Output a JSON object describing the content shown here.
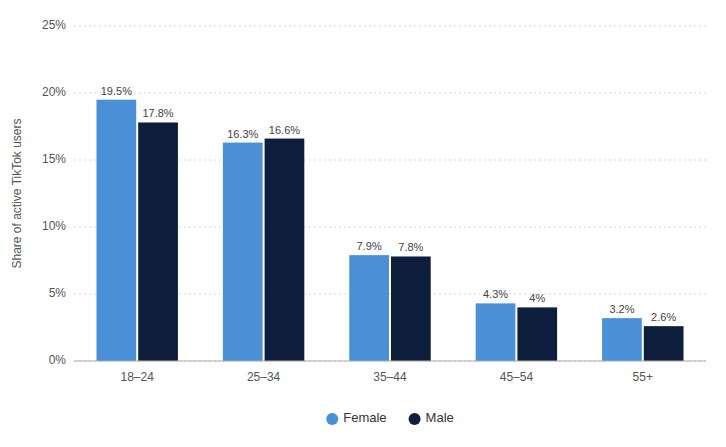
{
  "chart_data": {
    "type": "bar",
    "categories": [
      "18–24",
      "25–34",
      "35–44",
      "45–54",
      "55+"
    ],
    "series": [
      {
        "name": "Female",
        "color": "#4a90d9",
        "values": [
          19.5,
          16.3,
          7.9,
          4.3,
          3.2
        ],
        "value_labels": [
          "19.5%",
          "16.3%",
          "7.9%",
          "4.3%",
          "3.2%"
        ]
      },
      {
        "name": "Male",
        "color": "#0d1f3c",
        "values": [
          17.8,
          16.6,
          7.8,
          4.0,
          2.6
        ],
        "value_labels": [
          "17.8%",
          "16.6%",
          "7.8%",
          "4%",
          "2.6%"
        ]
      }
    ],
    "y_label": "Share of active TikTok users",
    "ylim": [
      0,
      25
    ],
    "yticks": [
      {
        "value": 0,
        "label": "0%"
      },
      {
        "value": 5,
        "label": "5%"
      },
      {
        "value": 10,
        "label": "10%"
      },
      {
        "value": 15,
        "label": "15%"
      },
      {
        "value": 20,
        "label": "20%"
      },
      {
        "value": 25,
        "label": "25%"
      }
    ],
    "grid": true,
    "legend": "bottom",
    "data_labels": true
  }
}
